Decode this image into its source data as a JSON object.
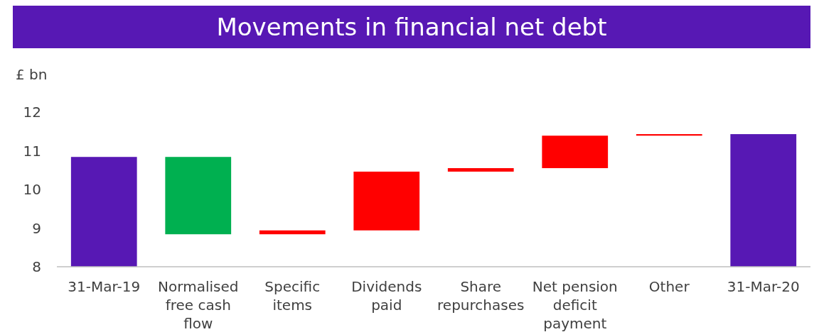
{
  "chart_data": {
    "type": "bar",
    "title": "Movements in financial net debt",
    "ylabel": "£ bn",
    "categories": [
      "31-Mar-19",
      "Normalised free cash flow",
      "Specific items",
      "Dividends paid",
      "Share repurchases",
      "Net pension deficit payment",
      "Other",
      "31-Mar-20"
    ],
    "values": [
      2.84,
      2.0,
      0.1,
      1.52,
      0.09,
      0.84,
      0.04,
      3.43
    ],
    "base": [
      8,
      8.84,
      8.84,
      8.94,
      10.46,
      10.55,
      11.39,
      8
    ],
    "colors": [
      "#5718b4",
      "#00b050",
      "#ff0000",
      "#ff0000",
      "#ff0000",
      "#ff0000",
      "#ff0000",
      "#5718b4"
    ],
    "ylim": [
      8,
      12
    ],
    "yticks": [
      8,
      9,
      10,
      11,
      12
    ],
    "grid": false
  }
}
